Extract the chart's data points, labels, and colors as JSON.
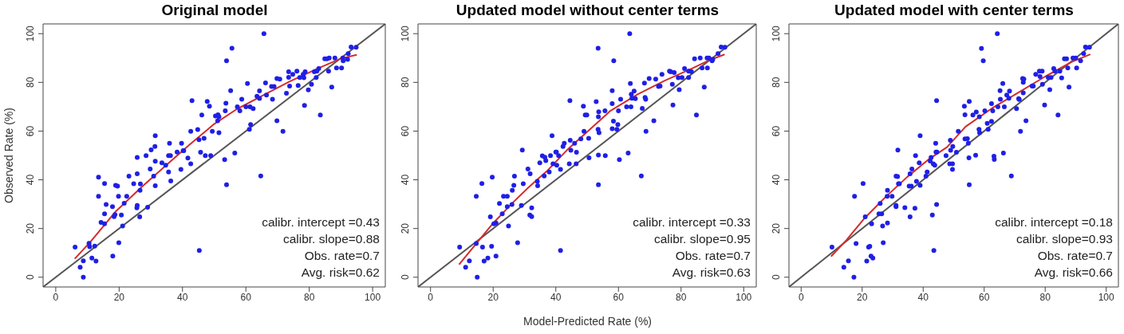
{
  "chart_data": [
    {
      "type": "scatter",
      "title": "Original model",
      "ylabel": "Observed Rate (%)",
      "xlim": [
        -4,
        104
      ],
      "ylim": [
        -4,
        104
      ],
      "xticks": [
        0,
        20,
        40,
        60,
        80,
        100
      ],
      "yticks": [
        0,
        20,
        40,
        60,
        80,
        100
      ],
      "grid": false,
      "legend": false,
      "marker": "circle",
      "annotations": [
        "calibr. intercept =0.43",
        "calibr. slope=0.88",
        "Obs. rate=0.7",
        "Avg. risk=0.62"
      ],
      "series": [
        {
          "type": "line",
          "color": "#555555",
          "marker": "none",
          "line_style": "solid",
          "x": [
            -4,
            104
          ],
          "values": [
            -4,
            104
          ]
        },
        {
          "color": "#1f1fe6",
          "x": [
            6.1,
            7.7,
            8.7,
            8.7,
            10.5,
            10.7,
            11.4,
            12.3,
            12.7,
            13.5,
            13.5,
            14.3,
            15.4,
            15.4,
            15.4,
            15.9,
            17.9,
            18,
            18.4,
            18.7,
            18.9,
            19.5,
            19.8,
            19.9,
            20.7,
            21.1,
            21.6,
            22.4,
            23.1,
            24.6,
            25.6,
            25.7,
            25.7,
            25.7,
            26.5,
            26.6,
            26.7,
            28.5,
            29,
            29.8,
            30.1,
            30.9,
            31.3,
            31.4,
            31.4,
            31.4,
            33.5,
            34.7,
            35.6,
            35.6,
            35.9,
            36.2,
            36.3,
            38.3,
            39.5,
            39.7,
            40.2,
            40.4,
            41.7,
            42.6,
            42.6,
            43,
            44.8,
            45.2,
            45.3,
            45.7,
            46.1,
            46.8,
            47.2,
            47.8,
            48.5,
            48.9,
            49.4,
            50.4,
            51.2,
            51.5,
            51.1,
            51.5,
            53.3,
            53.9,
            53.9,
            53.7,
            53.5,
            55.6,
            55.2,
            56.5,
            57.3,
            58.1,
            58.7,
            60,
            60.5,
            61.1,
            61.5,
            61.3,
            62.3,
            64.3,
            63.5,
            64.3,
            64.7,
            65.7,
            66.2,
            66.5,
            68.1,
            68.4,
            68.9,
            69.8,
            70.7,
            69.8,
            71.7,
            72.8,
            73.5,
            73.8,
            73.5,
            74.8,
            76.1,
            76.5,
            77,
            78.1,
            78.5,
            78.3,
            78.7,
            79.7,
            80.7,
            81.6,
            82.4,
            82.2,
            83,
            83.5,
            84.9,
            85.6,
            86.3,
            86.1,
            87.1,
            88.1,
            88.6,
            90.2,
            90.6,
            90.7,
            92.1,
            92.3,
            93.2,
            94.8
          ],
          "values": [
            12.4,
            4.1,
            6.7,
            0,
            13.9,
            12.5,
            7.9,
            12.8,
            6.6,
            41.1,
            33.2,
            22.5,
            38.5,
            26,
            21.9,
            29.9,
            29,
            8.7,
            24.9,
            25.7,
            37.7,
            37.4,
            33.2,
            14.2,
            25.5,
            21,
            30.4,
            33.2,
            41.5,
            38.4,
            28.5,
            42.5,
            49.2,
            29.5,
            24.8,
            35.7,
            38.3,
            49.9,
            28.7,
            44.4,
            52.3,
            41.5,
            53.7,
            47.6,
            58.1,
            37.6,
            47,
            46,
            49.9,
            43.2,
            55,
            49.9,
            39.5,
            51.4,
            44.3,
            55,
            52,
            52,
            48.9,
            59.9,
            46.6,
            72.5,
            60.6,
            56.5,
            11,
            51.3,
            66.6,
            57,
            49.9,
            72.2,
            70.2,
            49.9,
            59.9,
            66.2,
            66.7,
            65.9,
            64.2,
            59.3,
            48.3,
            88.9,
            38,
            71.4,
            68.3,
            94,
            76.6,
            51,
            70,
            68.3,
            73.1,
            70,
            79.5,
            60.7,
            62.7,
            70,
            69.2,
            76.5,
            74.3,
            73.4,
            41.6,
            100,
            79.8,
            74.8,
            78.3,
            73.1,
            78.3,
            81.6,
            81.3,
            64.2,
            59.9,
            75.5,
            84.4,
            78.5,
            82.1,
            83.3,
            84.6,
            78.7,
            82,
            83.3,
            70.5,
            81.9,
            84.4,
            76.9,
            79.2,
            84.4,
            84.6,
            82,
            85.7,
            66.6,
            89.7,
            89.7,
            90,
            84.6,
            78.1,
            90,
            85.9,
            85.9,
            90,
            88.9,
            89.4,
            91.8,
            94.5,
            94.4
          ]
        },
        {
          "type": "line",
          "color": "#d42a2a",
          "marker": "none",
          "line_style": "solid",
          "x": [
            6,
            11,
            19,
            27,
            34,
            42,
            50,
            57,
            66,
            74,
            83,
            90,
            95
          ],
          "values": [
            7.6,
            14.6,
            27.1,
            36.9,
            45,
            54.2,
            62.9,
            68.9,
            75.1,
            80.5,
            85.9,
            89.8,
            91.3
          ]
        }
      ]
    },
    {
      "type": "scatter",
      "title": "Updated model without center terms",
      "xlabel": "Model-Predicted Rate (%)",
      "xlim": [
        -4,
        104
      ],
      "ylim": [
        -4,
        104
      ],
      "xticks": [
        0,
        20,
        40,
        60,
        80,
        100
      ],
      "yticks": [
        0,
        20,
        40,
        60,
        80,
        100
      ],
      "grid": false,
      "legend": false,
      "marker": "circle",
      "annotations": [
        "calibr. intercept =0.33",
        "calibr. slope=0.95",
        "Obs. rate=0.7",
        "Avg. risk=0.63"
      ],
      "series": [
        {
          "type": "line",
          "color": "#555555",
          "marker": "none",
          "line_style": "solid",
          "x": [
            -4,
            104
          ],
          "values": [
            -4,
            104
          ]
        },
        {
          "color": "#1f1fe6",
          "x": [
            9.3,
            11.2,
            12.4,
            14.9,
            14.6,
            14.6,
            16.4,
            16.6,
            17.1,
            18.3,
            19.1,
            19.5,
            19.7,
            20.2,
            20.9,
            20.9,
            22,
            22.9,
            23.3,
            24.5,
            24.5,
            24.9,
            26,
            26.1,
            26.6,
            26.8,
            27.8,
            29,
            29.3,
            29.6,
            31.1,
            31.7,
            31.8,
            32.3,
            32.3,
            34.1,
            34.2,
            34.9,
            35.7,
            36.3,
            36.5,
            36.8,
            37.9,
            38.3,
            38.8,
            39.1,
            40,
            40.2,
            40.3,
            40.9,
            41.5,
            41.5,
            42.3,
            42.7,
            44.3,
            44.5,
            44.6,
            44.8,
            46,
            46.5,
            46.6,
            48,
            48.8,
            49,
            49.4,
            49.9,
            50.5,
            50.6,
            52.9,
            53.7,
            53.6,
            53.5,
            53.5,
            53.8,
            53.6,
            53.6,
            55.7,
            55.8,
            58,
            58,
            58,
            58.5,
            58.4,
            59.5,
            59.8,
            60,
            60.3,
            60.7,
            62.6,
            63.1,
            63.6,
            63.8,
            64,
            64.1,
            64.3,
            65,
            65.4,
            67.3,
            67.6,
            68.3,
            68.5,
            68.7,
            68.8,
            69.8,
            71.3,
            71.9,
            72.8,
            73.3,
            73.9,
            76.3,
            76.7,
            77.2,
            77.4,
            77.8,
            79.1,
            79.4,
            80.3,
            81.1,
            82.4,
            82.4,
            83.3,
            84.3,
            84.9,
            86.1,
            86.7,
            87.4,
            88.3,
            88.4,
            88.9,
            89.9,
            90.1,
            91.8,
            92.8,
            94
          ],
          "values": [
            12.4,
            4.1,
            6.7,
            0,
            33.2,
            13.8,
            38.5,
            12.4,
            6.6,
            7.9,
            24.8,
            12.7,
            41.1,
            21.9,
            22.3,
            8.7,
            30.3,
            26,
            33.2,
            33.2,
            29,
            21,
            29.9,
            35.7,
            37.7,
            41.5,
            14.2,
            29.5,
            52.2,
            38.4,
            44.4,
            25.5,
            42.5,
            28.5,
            24.9,
            39.4,
            37.6,
            47,
            49.8,
            41.6,
            49.3,
            47.9,
            43.2,
            49.9,
            58.1,
            46.6,
            51.4,
            51.4,
            46,
            49.9,
            44.3,
            11,
            53.7,
            55,
            46.6,
            72.5,
            56.2,
            52.1,
            55,
            46.6,
            51.3,
            56.8,
            70.2,
            59.9,
            66.6,
            66.6,
            57,
            49,
            72.1,
            67.9,
            65.9,
            94,
            60.7,
            59.3,
            50.2,
            38,
            68.3,
            49.9,
            76.6,
            71.3,
            61,
            88.9,
            64.1,
            60.7,
            62.7,
            68.3,
            48.3,
            73.1,
            70,
            51,
            100,
            79.5,
            70,
            75.1,
            73.5,
            76.4,
            73.3,
            41.6,
            69.3,
            79.7,
            73.8,
            73.1,
            59.9,
            81.6,
            64.2,
            81.3,
            78.3,
            78.5,
            83.3,
            84.6,
            84.4,
            79.2,
            70.7,
            84,
            81.9,
            77,
            82,
            85.7,
            84.6,
            82,
            84.4,
            89.7,
            66.6,
            90,
            85.9,
            78.1,
            90,
            85.9,
            90,
            88.9,
            89.4,
            91.8,
            94.5,
            94.4
          ]
        },
        {
          "type": "line",
          "color": "#d42a2a",
          "marker": "none",
          "line_style": "solid",
          "x": [
            9.1,
            14.8,
            20,
            26.1,
            31.3,
            37.4,
            43.5,
            50.9,
            57.4,
            66.1,
            74.8,
            83.5,
            88.7,
            93.9
          ],
          "values": [
            5.2,
            14.1,
            22.2,
            30.4,
            36.9,
            43.9,
            52.1,
            60.7,
            68.3,
            75.1,
            80.7,
            85.7,
            88.9,
            91.5
          ]
        }
      ]
    },
    {
      "type": "scatter",
      "title": "Updated model with center terms",
      "xlim": [
        -4,
        104
      ],
      "ylim": [
        -4,
        104
      ],
      "xticks": [
        0,
        20,
        40,
        60,
        80,
        100
      ],
      "yticks": [
        0,
        20,
        40,
        60,
        80,
        100
      ],
      "grid": false,
      "legend": false,
      "marker": "circle",
      "annotations": [
        "calibr. intercept =0.18",
        "calibr. slope=0.93",
        "Obs. rate=0.7",
        "Avg. risk=0.66"
      ],
      "series": [
        {
          "type": "line",
          "color": "#555555",
          "marker": "none",
          "line_style": "solid",
          "x": [
            -4,
            104
          ],
          "values": [
            -4,
            104
          ]
        },
        {
          "color": "#1f1fe6",
          "x": [
            10.1,
            14,
            15.5,
            17.3,
            17.5,
            18,
            20.3,
            21,
            21.5,
            22.1,
            22.5,
            23.1,
            22.9,
            23.5,
            25.9,
            25.5,
            26.4,
            26.7,
            26.9,
            28.2,
            28.3,
            28.3,
            29.8,
            31.1,
            31.6,
            31.1,
            31.1,
            31.7,
            31.9,
            32.2,
            34,
            35.4,
            35.7,
            35.7,
            36.1,
            36.3,
            37.3,
            37.5,
            37.8,
            38.7,
            39,
            39,
            40.9,
            41.3,
            42.3,
            42.6,
            43,
            43.3,
            43.5,
            43.8,
            44.1,
            44.4,
            44.2,
            44.5,
            44.4,
            47.5,
            48.9,
            49,
            49.7,
            48.7,
            49.6,
            49.6,
            50.9,
            51.5,
            53.5,
            53.7,
            53.7,
            54.5,
            54.8,
            55,
            55.1,
            55.1,
            56.3,
            57.2,
            57.4,
            58.3,
            58.5,
            58.4,
            59.1,
            59.7,
            60.2,
            61,
            61.3,
            62.4,
            62.4,
            62.8,
            63.2,
            63.3,
            64.3,
            64.5,
            65.2,
            65.3,
            66.1,
            66.3,
            66.6,
            67.4,
            68.1,
            68.3,
            68.9,
            70.6,
            71.3,
            71.5,
            71.9,
            72.6,
            72.8,
            73,
            72.8,
            73.7,
            75.7,
            76.1,
            76.9,
            78.1,
            78.3,
            79,
            79.1,
            79.8,
            81,
            81.5,
            81.9,
            82.8,
            83.2,
            84.2,
            84.8,
            85.4,
            86.3,
            87,
            87.4,
            87.8,
            89.1,
            90.3,
            90,
            91.6,
            92.6,
            93.2,
            94.5
          ],
          "values": [
            12.4,
            4.1,
            6.7,
            0,
            33.2,
            13.8,
            38.5,
            24.8,
            6.6,
            12.4,
            12.7,
            21.9,
            8.7,
            7.9,
            30.3,
            26,
            26,
            21,
            14.2,
            33.2,
            35.7,
            22.3,
            33.2,
            41.5,
            41.3,
            29.5,
            29,
            52.2,
            38.4,
            38.4,
            28.6,
            37.4,
            42.5,
            24.8,
            37.4,
            44.4,
            28.3,
            49.9,
            39.4,
            47,
            58.1,
            37.7,
            41.5,
            43.2,
            47.7,
            49.2,
            25.5,
            46.6,
            11,
            46,
            55,
            72.5,
            51.4,
            51.4,
            29.9,
            49.9,
            56.2,
            52.1,
            53.7,
            46.6,
            46.6,
            44.3,
            51.3,
            59.9,
            70.2,
            66.7,
            56.8,
            56.9,
            55,
            49,
            72.2,
            38,
            66.6,
            50.1,
            67.8,
            60.7,
            59.3,
            65.9,
            93.9,
            88.9,
            68.3,
            63.2,
            60.7,
            71.3,
            64,
            68.3,
            49.7,
            48.4,
            100,
            70,
            76.6,
            73.1,
            79.5,
            51,
            70,
            74.8,
            73.5,
            76.4,
            41.6,
            69.2,
            73.3,
            73,
            59.9,
            81.6,
            80,
            81.3,
            75.7,
            64.2,
            78.5,
            78.5,
            83.3,
            84.6,
            82.4,
            84.6,
            79.2,
            70.7,
            82,
            77,
            82,
            85.7,
            84.6,
            66.6,
            84.6,
            81.8,
            89.7,
            89.7,
            85.9,
            78.1,
            90,
            85.9,
            90,
            88.9,
            91.8,
            94.5,
            94.4
          ]
        },
        {
          "type": "line",
          "color": "#d42a2a",
          "marker": "none",
          "line_style": "solid",
          "x": [
            9.8,
            14.8,
            20.9,
            27.8,
            34.8,
            41.7,
            47.8,
            53.9,
            62.6,
            71.3,
            80,
            88.7,
            94.8
          ],
          "values": [
            8.5,
            15.2,
            24.4,
            33.1,
            41.2,
            48.3,
            53.4,
            61.8,
            69.4,
            75.9,
            82.4,
            88.4,
            91.5
          ]
        }
      ]
    }
  ]
}
